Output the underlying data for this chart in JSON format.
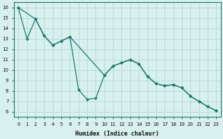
{
  "xlabel": "Humidex (Indice chaleur)",
  "bg_color": "#d8f0ee",
  "grid_color": "#b8dcd8",
  "line_color": "#1a7a6e",
  "xlim": [
    -0.5,
    23.5
  ],
  "ylim": [
    5.5,
    16.5
  ],
  "xticks": [
    0,
    1,
    2,
    3,
    4,
    5,
    6,
    7,
    8,
    9,
    10,
    11,
    12,
    13,
    14,
    15,
    16,
    17,
    18,
    19,
    20,
    21,
    22,
    23
  ],
  "yticks": [
    6,
    7,
    8,
    9,
    10,
    11,
    12,
    13,
    14,
    15,
    16
  ],
  "line1_x": [
    0,
    1,
    2,
    3,
    4,
    5,
    6,
    7,
    8,
    9,
    10,
    11,
    12,
    13,
    14,
    15,
    16,
    17,
    18,
    19,
    20,
    21,
    22,
    23
  ],
  "line1_y": [
    16.0,
    13.0,
    14.9,
    13.3,
    12.4,
    12.8,
    13.2,
    8.1,
    7.2,
    7.3,
    9.5,
    10.4,
    10.7,
    11.0,
    10.6,
    9.4,
    8.7,
    8.5,
    8.6,
    8.3,
    7.5,
    7.0,
    6.5,
    6.1
  ],
  "line2_x": [
    0,
    2,
    3,
    4,
    5,
    6,
    10,
    11,
    12,
    13,
    14,
    15,
    16,
    17,
    18,
    19,
    20,
    21,
    22,
    23
  ],
  "line2_y": [
    16.0,
    14.9,
    13.3,
    12.4,
    12.8,
    13.2,
    9.5,
    10.4,
    10.7,
    11.0,
    10.6,
    9.4,
    8.7,
    8.5,
    8.6,
    8.3,
    7.5,
    7.0,
    6.5,
    6.1
  ]
}
